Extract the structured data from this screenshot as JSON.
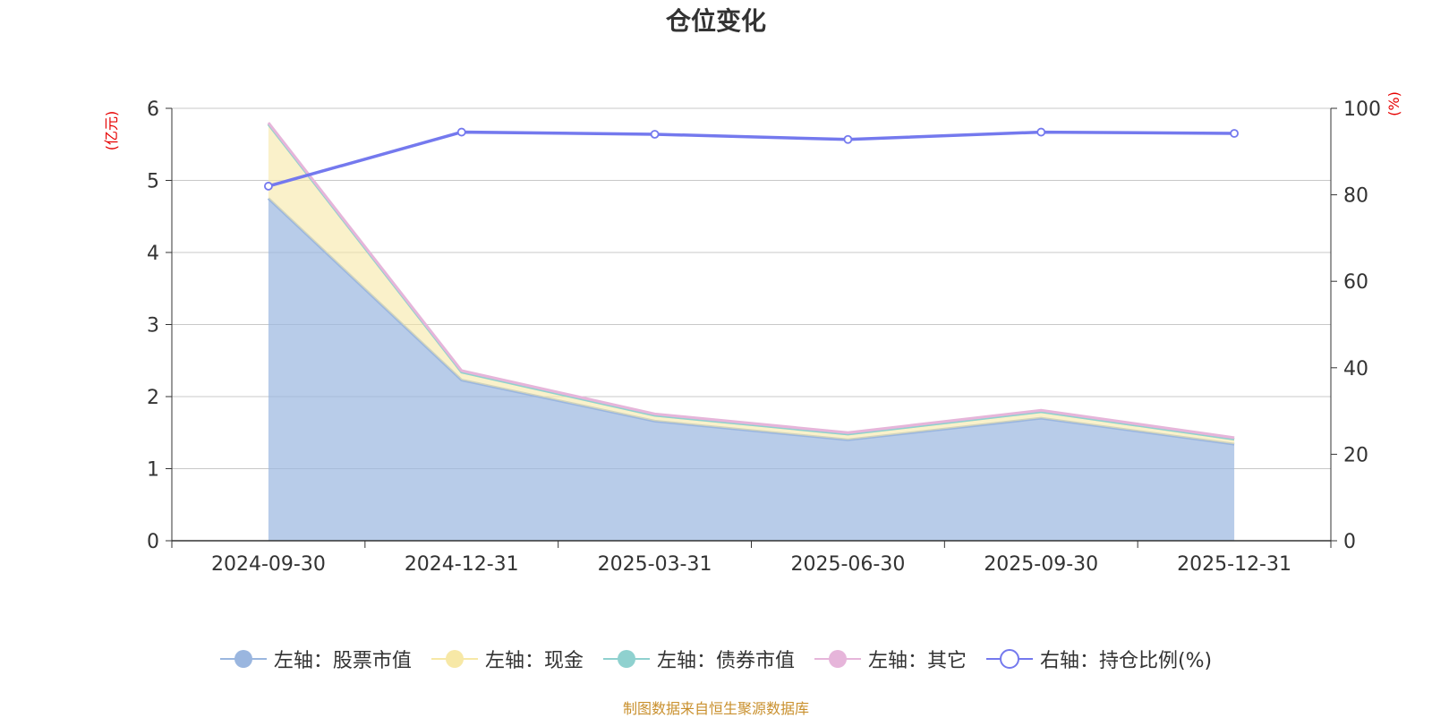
{
  "source_note": "制图数据来自恒生聚源数据库",
  "colors": {
    "stock": "#9ab6df",
    "cash": "#f7e8a6",
    "bond": "#8fd1cf",
    "other": "#e6b5da",
    "ratio": "#7479ee",
    "unit_label": "#e60000",
    "grid": "#c8c8c8",
    "source_note": "#c9902e"
  },
  "chart_data": {
    "type": "area",
    "stacked": true,
    "title": "仓位变化",
    "categories": [
      "2024-09-30",
      "2024-12-31",
      "2025-03-31",
      "2025-06-30",
      "2025-09-30",
      "2025-12-31"
    ],
    "left_axis": {
      "unit": "(亿元)",
      "range": [
        0,
        6
      ],
      "ticks": [
        "0",
        "1",
        "2",
        "3",
        "4",
        "5",
        "6"
      ]
    },
    "right_axis": {
      "unit": "(%)",
      "range": [
        0,
        100
      ],
      "ticks": [
        "0",
        "20",
        "40",
        "60",
        "80",
        "100"
      ]
    },
    "grid": true,
    "legend_position": "bottom",
    "series": [
      {
        "name": "左轴：股票市值",
        "axis": "left",
        "kind": "area",
        "values": [
          4.75,
          2.23,
          1.66,
          1.4,
          1.7,
          1.34
        ]
      },
      {
        "name": "左轴：现金",
        "axis": "left",
        "kind": "area",
        "values": [
          1.03,
          0.11,
          0.08,
          0.08,
          0.09,
          0.07
        ]
      },
      {
        "name": "左轴：债券市值",
        "axis": "left",
        "kind": "area",
        "values": [
          0,
          0,
          0,
          0,
          0,
          0
        ]
      },
      {
        "name": "左轴：其它",
        "axis": "left",
        "kind": "area",
        "values": [
          0.02,
          0.02,
          0.02,
          0.02,
          0.02,
          0.02
        ]
      },
      {
        "name": "右轴：持仓比例(%)",
        "axis": "right",
        "kind": "line",
        "values": [
          82.0,
          94.5,
          94.0,
          92.8,
          94.5,
          94.2
        ]
      }
    ]
  }
}
